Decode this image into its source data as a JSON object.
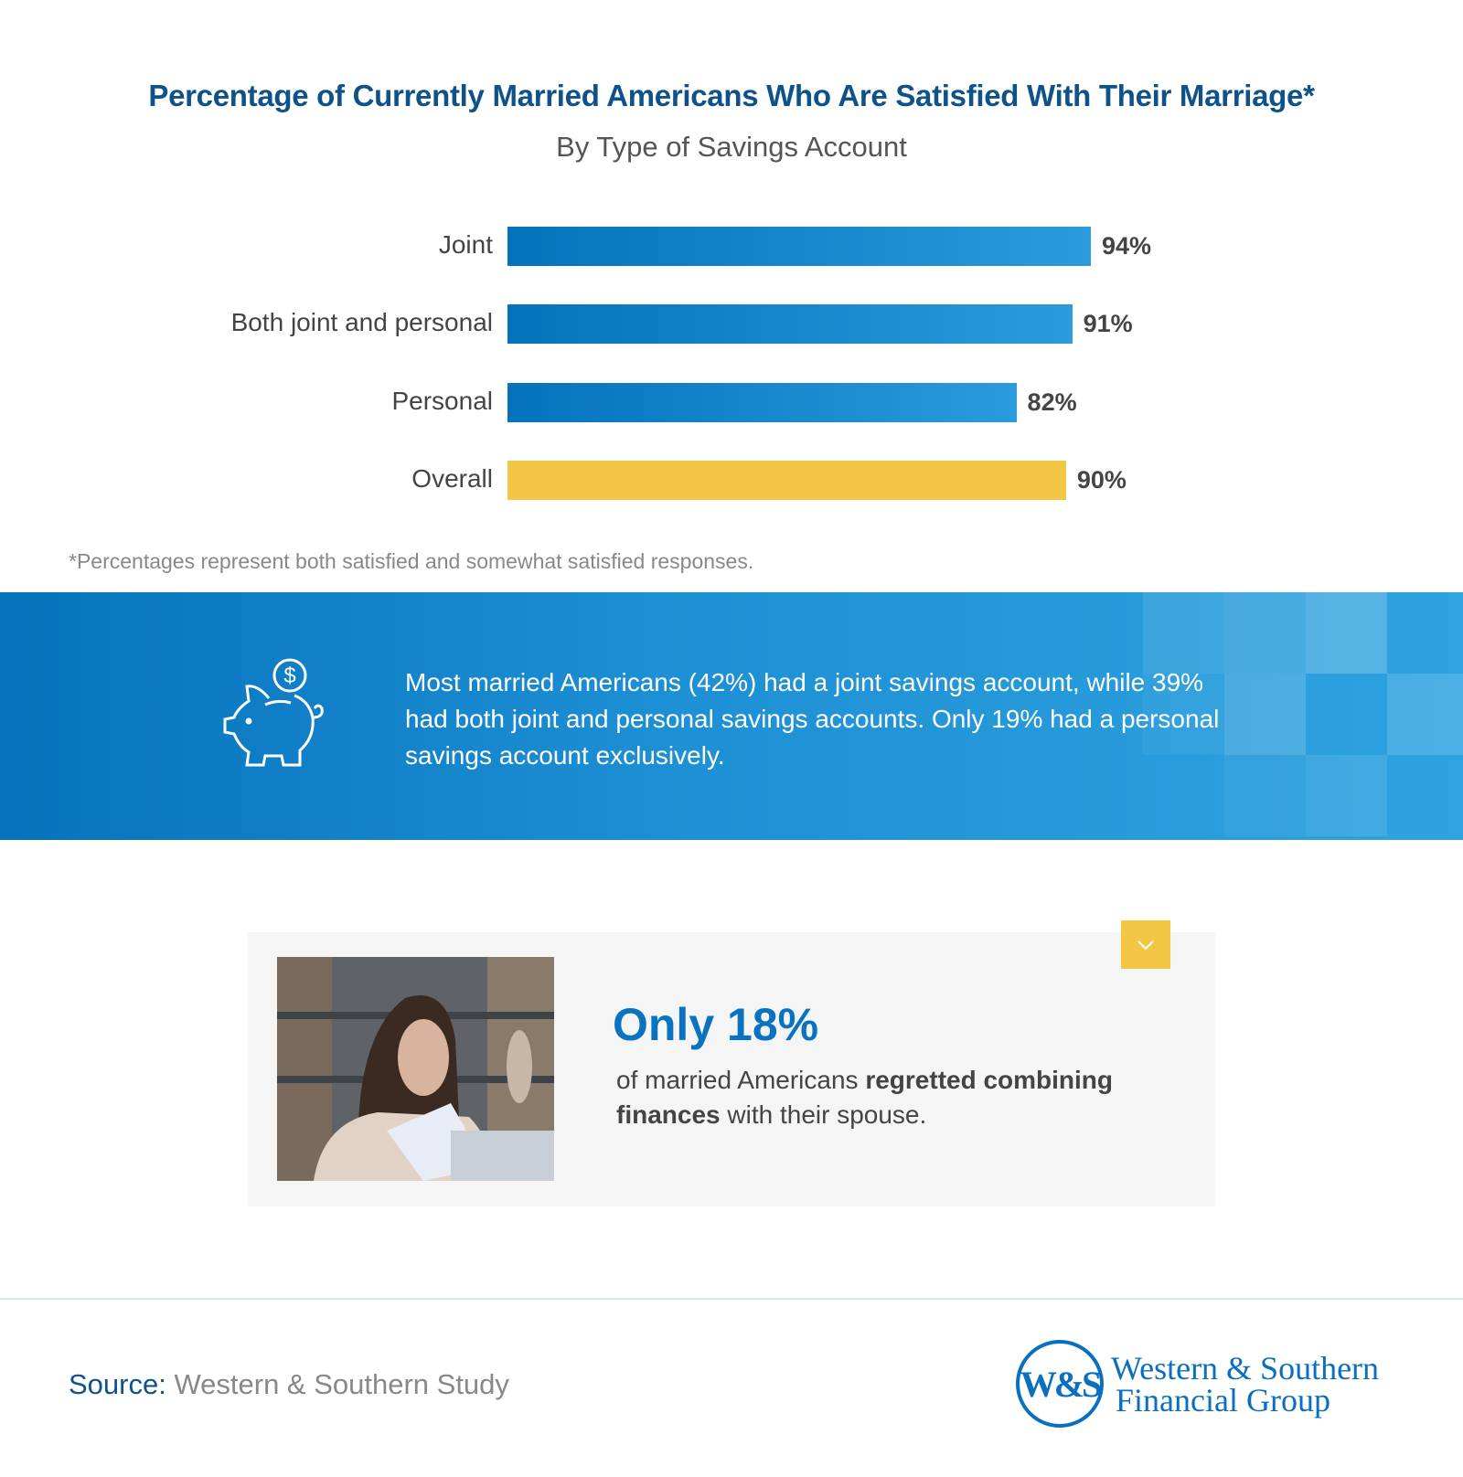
{
  "chart_data": {
    "type": "bar",
    "orientation": "horizontal",
    "title": "Percentage of Currently Married Americans Who Are Satisfied With Their Marriage*",
    "subtitle": "By Type of Savings Account",
    "categories": [
      "Joint",
      "Both joint and personal",
      "Personal",
      "Overall"
    ],
    "values": [
      94,
      91,
      82,
      90
    ],
    "value_labels": [
      "94%",
      "91%",
      "82%",
      "90%"
    ],
    "colors": [
      "#0a7ac7",
      "#0a7ac7",
      "#0a7ac7",
      "#f1c744"
    ],
    "xlim": [
      0,
      100
    ],
    "grid": false,
    "footnote": "*Percentages represent both satisfied and somewhat satisfied responses."
  },
  "band": {
    "icon": "piggy-bank-dollar-icon",
    "text": "Most married Americans (42%) had a joint savings account, while 39% had both joint and personal savings accounts. Only 19% had a personal savings account exclusively."
  },
  "card": {
    "headline": "Only 18%",
    "text_pre": "of married Americans ",
    "text_bold1": "regretted combining finances",
    "text_post": " with their spouse.",
    "tab_icon": "chevron-down-icon"
  },
  "footer": {
    "source_label": "Source:",
    "source_value": " Western & Southern Study",
    "logo_line1": "Western & Southern",
    "logo_line2": "Financial Group",
    "logo_mark": "W&S"
  },
  "colors": {
    "brand_blue": "#0a73c1",
    "title_blue": "#0e5289",
    "accent_yellow": "#f1c744"
  }
}
